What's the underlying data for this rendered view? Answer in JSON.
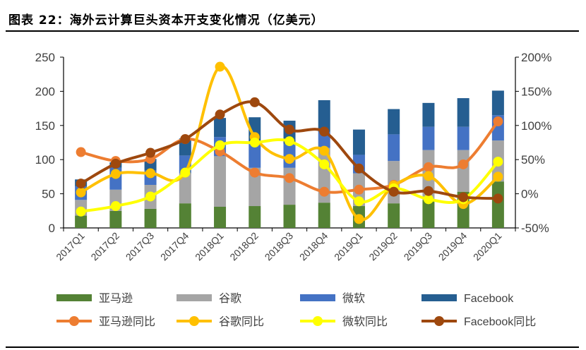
{
  "title": "图表 22：海外云计算巨头资本开支变化情况（亿美元）",
  "chart_data": {
    "type": "bar+line",
    "categories": [
      "2017Q1",
      "2017Q2",
      "2017Q3",
      "2017Q4",
      "2018Q1",
      "2018Q2",
      "2018Q3",
      "2018Q4",
      "2019Q1",
      "2019Q2",
      "2019Q3",
      "2019Q4",
      "2020Q1"
    ],
    "left_axis": {
      "ylim": [
        0,
        250
      ],
      "ticks": [
        "0",
        "50",
        "100",
        "150",
        "200",
        "250"
      ]
    },
    "right_axis": {
      "ylim": [
        -50,
        200
      ],
      "ticks": [
        "-50%",
        "0%",
        "50%",
        "100%",
        "150%",
        "200%"
      ]
    },
    "bar_series": [
      {
        "name": "亚马逊",
        "color": "#548235",
        "values": [
          18,
          25,
          28,
          36,
          31,
          32,
          34,
          37,
          32,
          36,
          41,
          53,
          68
        ]
      },
      {
        "name": "谷歌",
        "color": "#a5a5a5",
        "values": [
          23,
          31,
          35,
          44,
          74,
          56,
          54,
          80,
          48,
          62,
          73,
          61,
          60
        ]
      },
      {
        "name": "微软",
        "color": "#4472c4",
        "values": [
          20,
          32,
          21,
          26,
          28,
          36,
          35,
          24,
          27,
          39,
          34,
          34,
          37
        ]
      },
      {
        "name": "Facebook",
        "color": "#255e91",
        "values": [
          10,
          8,
          17,
          25,
          28,
          38,
          34,
          46,
          37,
          37,
          35,
          42,
          36
        ]
      }
    ],
    "line_series": [
      {
        "name": "亚马逊同比",
        "color": "#ed7d31",
        "values": [
          61,
          48,
          51,
          80,
          62,
          31,
          23,
          3,
          6,
          13,
          39,
          43,
          106
        ]
      },
      {
        "name": "谷歌同比",
        "color": "#ffc000",
        "values": [
          2,
          29,
          30,
          31,
          186,
          83,
          51,
          63,
          -37,
          12,
          26,
          -15,
          25
        ]
      },
      {
        "name": "微软同比",
        "color": "#ffff00",
        "values": [
          -26,
          -18,
          -4,
          31,
          71,
          75,
          77,
          43,
          -11,
          8,
          -8,
          -8,
          47
        ]
      },
      {
        "name": "Facebook同比",
        "color": "#9e480e",
        "values": [
          15,
          44,
          60,
          80,
          116,
          134,
          94,
          91,
          37,
          3,
          4,
          -5,
          -7
        ]
      }
    ],
    "legend_placement": "bottom",
    "grid": false
  }
}
